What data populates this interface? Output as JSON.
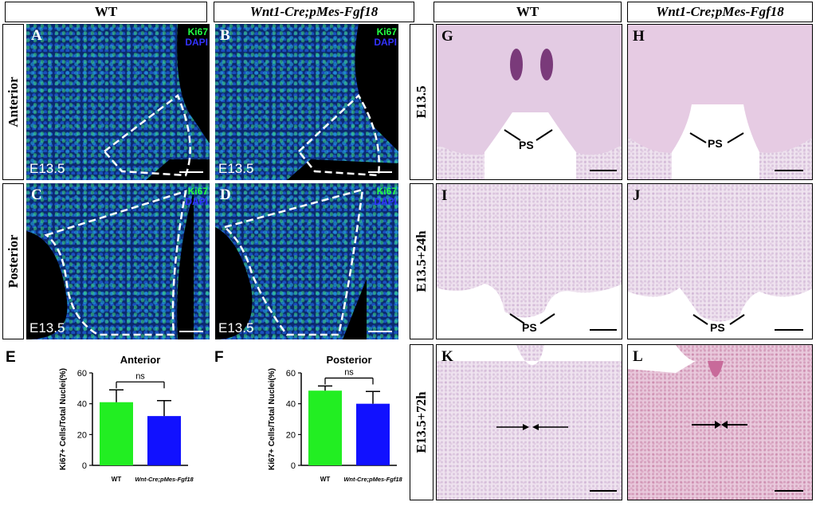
{
  "headers": {
    "wt": "WT",
    "mutant": "Wnt1-Cre;pMes-Fgf18"
  },
  "rows_left": {
    "anterior": "Anterior",
    "posterior": "Posterior"
  },
  "rows_right": {
    "r1": "E13.5",
    "r2": "E13.5+24h",
    "r3": "E13.5+72h"
  },
  "panels": {
    "A": "A",
    "B": "B",
    "C": "C",
    "D": "D",
    "G": "G",
    "H": "H",
    "I": "I",
    "J": "J",
    "K": "K",
    "L": "L"
  },
  "stain": {
    "ki67": "Ki67",
    "dapi": "DAPI"
  },
  "stage_label": "E13.5",
  "ps_label": "PS",
  "charts": {
    "E": {
      "letter": "E",
      "ylabel": "Ki67+ Cells/Total Nuclei(%)",
      "ns": "ns"
    },
    "F": {
      "letter": "F",
      "ylabel": "Ki67+ Cells/Total Nuclei(%)",
      "ns": "ns"
    }
  },
  "chart_data": [
    {
      "type": "bar",
      "title": "Anterior",
      "categories": [
        "WT",
        "Wnt-Cre;pMes-Fgf18"
      ],
      "values": [
        41,
        32
      ],
      "errors": [
        8,
        10
      ],
      "colors": [
        "#22ee22",
        "#1111ff"
      ],
      "ylabel": "Ki67+ Cells/Total Nuclei(%)",
      "ylim": [
        0,
        60
      ],
      "yticks": [
        0,
        20,
        40,
        60
      ],
      "annotation": "ns"
    },
    {
      "type": "bar",
      "title": "Posterior",
      "categories": [
        "WT",
        "Wnt-Cre;pMes-Fgf18"
      ],
      "values": [
        48.5,
        40
      ],
      "errors": [
        3,
        8
      ],
      "colors": [
        "#22ee22",
        "#1111ff"
      ],
      "ylabel": "Ki67+ Cells/Total Nuclei(%)",
      "ylim": [
        0,
        60
      ],
      "yticks": [
        0,
        20,
        40,
        60
      ],
      "annotation": "ns"
    }
  ]
}
